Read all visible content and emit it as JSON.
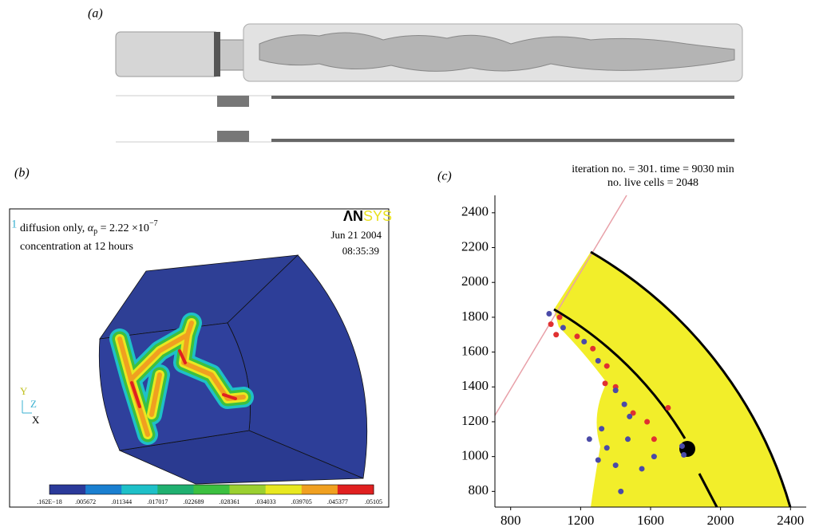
{
  "panel_a": {
    "label": "(a)"
  },
  "panel_b": {
    "label": "(b)",
    "corner_number": "1",
    "line1": [
      "diffusion only, ",
      "α",
      "p",
      " = 2.22 ×10",
      "−7"
    ],
    "line2": "concentration at 12 hours",
    "logo": [
      "ΛN",
      "SYS"
    ],
    "date": "Jun 21 2004",
    "time": "08:35:39",
    "triad": [
      "Y",
      "Z",
      "X"
    ],
    "colorbar": {
      "labels": [
        ".162E−18",
        ".005672",
        ".011344",
        ".017017",
        ".022689",
        ".028361",
        ".034033",
        ".039705",
        ".045377",
        ".05105"
      ],
      "colors": [
        "#2b3a9a",
        "#1a7fd0",
        "#1ec0c8",
        "#20b070",
        "#3cc040",
        "#9bd030",
        "#e8e820",
        "#f0a020",
        "#e02020"
      ]
    }
  },
  "panel_c": {
    "label": "(c)",
    "chart_data": {
      "type": "scatter",
      "title": [
        "iteration no. = 301. time = 9030 min",
        "no. live cells = 2048"
      ],
      "xlim": [
        710,
        2490
      ],
      "ylim": [
        710,
        2500
      ],
      "xticks": [
        800,
        1200,
        1600,
        2000,
        2400
      ],
      "yticks": [
        800,
        1000,
        1200,
        1400,
        1600,
        1800,
        2000,
        2200,
        2400
      ],
      "series": [
        {
          "color": "#e03030",
          "x": [
            1080,
            1030,
            1060,
            1180,
            1270,
            1350,
            1400,
            1500,
            1580,
            1620,
            1700,
            1340
          ],
          "values": [
            1800,
            1760,
            1700,
            1690,
            1620,
            1520,
            1400,
            1250,
            1200,
            1100,
            1280,
            1420
          ]
        },
        {
          "color": "#4a4aa8",
          "x": [
            1020,
            1100,
            1220,
            1300,
            1400,
            1450,
            1480,
            1320,
            1350,
            1300,
            1400,
            1470,
            1550,
            1620,
            1780,
            1790,
            1250,
            1430
          ],
          "values": [
            1820,
            1740,
            1660,
            1550,
            1380,
            1300,
            1230,
            1160,
            1050,
            980,
            950,
            1100,
            930,
            1000,
            1060,
            1010,
            1100,
            800
          ]
        }
      ]
    }
  }
}
